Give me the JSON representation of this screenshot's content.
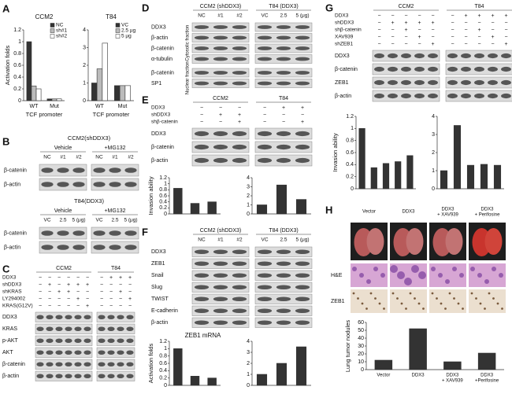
{
  "letters": [
    "A",
    "B",
    "C",
    "D",
    "E",
    "F",
    "G",
    "H"
  ],
  "chart_data": [
    {
      "type": "bar",
      "title": "CCM2",
      "ylabel": "Activation folds",
      "xlabel": "TCF promoter",
      "categories": [
        "WT",
        "Mut"
      ],
      "series": [
        {
          "name": "NC",
          "color": "#333333",
          "values": [
            1.0,
            0.03
          ]
        },
        {
          "name": "sh#1",
          "color": "#bbbbbb",
          "values": [
            0.25,
            0.03
          ]
        },
        {
          "name": "sh#2",
          "color": "#ffffff",
          "values": [
            0.2,
            0.03
          ]
        }
      ],
      "ylim": [
        0,
        1.2
      ],
      "yticks": [
        0,
        0.2,
        0.4,
        0.6,
        0.8,
        1,
        1.2
      ]
    },
    {
      "type": "bar",
      "title": "T84",
      "xlabel": "TCF promoter",
      "categories": [
        "WT",
        "Mut"
      ],
      "series": [
        {
          "name": "VC",
          "color": "#333333",
          "values": [
            1.0,
            0.85
          ]
        },
        {
          "name": "2.5 µg",
          "color": "#bbbbbb",
          "values": [
            1.8,
            0.85
          ]
        },
        {
          "name": "5 µg",
          "color": "#ffffff",
          "values": [
            3.25,
            0.85
          ]
        }
      ],
      "ylim": [
        0,
        4
      ],
      "yticks": [
        0,
        1,
        2,
        3,
        4
      ]
    },
    {
      "type": "bar",
      "ylabel": "Invasion ability",
      "values": [
        0.85,
        0.35,
        0.4
      ],
      "color": "#333333",
      "ylim": [
        0,
        1.2
      ],
      "yticks": [
        0,
        0.2,
        0.4,
        0.6,
        0.8,
        1,
        1.2
      ]
    },
    {
      "type": "bar",
      "values": [
        1.0,
        3.2,
        1.6
      ],
      "color": "#333333",
      "ylim": [
        0,
        4
      ],
      "yticks": [
        0,
        1,
        2,
        3,
        4
      ]
    },
    {
      "type": "bar",
      "title": "ZEB1 mRNA",
      "ylabel": "Activation folds",
      "values": [
        1.0,
        0.25,
        0.2
      ],
      "color": "#333333",
      "ylim": [
        0,
        1.2
      ],
      "yticks": [
        0,
        0.2,
        0.4,
        0.6,
        0.8,
        1,
        1.2
      ]
    },
    {
      "type": "bar",
      "values": [
        1.0,
        2.0,
        3.5
      ],
      "color": "#333333",
      "ylim": [
        0,
        4
      ],
      "yticks": [
        0,
        1,
        2,
        3,
        4
      ]
    },
    {
      "type": "bar",
      "ylabel": "Invasion ability",
      "values": [
        1.0,
        0.35,
        0.42,
        0.45,
        0.55
      ],
      "color": "#333333",
      "ylim": [
        0,
        1.2
      ],
      "yticks": [
        0,
        0.2,
        0.4,
        0.6,
        0.8,
        1,
        1.2
      ]
    },
    {
      "type": "bar",
      "values": [
        1.0,
        3.5,
        1.3,
        1.35,
        1.3
      ],
      "color": "#333333",
      "ylim": [
        0,
        4
      ],
      "yticks": [
        0,
        1,
        2,
        3,
        4
      ]
    },
    {
      "type": "bar",
      "ylabel": "Lung tumor nodules",
      "categories": [
        [
          "Vector"
        ],
        [
          "DDX3"
        ],
        [
          "DDX3",
          "+ XAV939"
        ],
        [
          "DDX3",
          "+Perifosine"
        ]
      ],
      "values": [
        12,
        52,
        10,
        21
      ],
      "color": "#333333",
      "ylim": [
        0,
        60
      ],
      "yticks": [
        0,
        10,
        20,
        30,
        40,
        50,
        60
      ]
    }
  ],
  "blots": [
    {
      "title": "CCM2(shDDX3)",
      "groups": [
        {
          "label": "Vehicle",
          "lanes": [
            "NC",
            "#1",
            "#2"
          ]
        },
        {
          "label": "+MG132",
          "lanes": [
            "NC",
            "#1",
            "#2"
          ]
        }
      ],
      "rows": [
        "β-catenin",
        "β-actin"
      ]
    },
    {
      "title": "T84(DDX3)",
      "groups": [
        {
          "label": "Vehicle",
          "lanes": [
            "VC",
            "2.5",
            "5 (μg)"
          ]
        },
        {
          "label": "+MG132",
          "lanes": [
            "VC",
            "2.5",
            "5 (μg)"
          ]
        }
      ],
      "rows": [
        "β-catenin",
        "β-actin"
      ]
    },
    {
      "treatments": [
        "DDX3",
        "shDDX3",
        "shKRAS",
        "LY294002",
        "KRAS(G12V)"
      ],
      "groups": [
        {
          "label": "CCM2",
          "signs": [
            [
              "−",
              "−",
              "−",
              "−",
              "−",
              "−"
            ],
            [
              "−",
              "+",
              "−",
              "+",
              "+",
              "+"
            ],
            [
              "−",
              "−",
              "+",
              "+",
              "−",
              "−"
            ],
            [
              "−",
              "−",
              "−",
              "−",
              "+",
              "−"
            ],
            [
              "−",
              "−",
              "−",
              "−",
              "−",
              "+"
            ]
          ]
        },
        {
          "label": "T84",
          "signs": [
            [
              "−",
              "+",
              "+",
              "+"
            ],
            [
              "−",
              "−",
              "−",
              "−"
            ],
            [
              "−",
              "−",
              "+",
              "−"
            ],
            [
              "−",
              "−",
              "−",
              "+"
            ],
            [
              "−",
              "−",
              "−",
              "−"
            ]
          ]
        }
      ],
      "rows": [
        "DDX3",
        "KRAS",
        "p-AKT",
        "AKT",
        "β-catenin",
        "β-actin"
      ]
    },
    {
      "groups": [
        {
          "label": "CCM2 (shDDX3)",
          "lanes": [
            "NC",
            "#1",
            "#2"
          ]
        },
        {
          "label": "T84 (DDX3)",
          "lanes": [
            "VC",
            "2.5",
            "5 (μg)"
          ]
        }
      ],
      "rows": [
        "DDX3",
        "β-actin",
        "β-catenin",
        "α-tubulin",
        "β-catenin",
        "SP1"
      ],
      "fractions": [
        "Cytosolic fraction",
        "Nuclear fraction"
      ]
    },
    {
      "treatments": [
        "DDX3",
        "shDDX3",
        "shβ-catenin"
      ],
      "groups": [
        {
          "label": "CCM2",
          "signs": [
            [
              "−",
              "−",
              "−"
            ],
            [
              "−",
              "+",
              "+"
            ],
            [
              "−",
              "−",
              "+"
            ]
          ]
        },
        {
          "label": "T84",
          "signs": [
            [
              "−",
              "+",
              "+"
            ],
            [
              "−",
              "−",
              "−"
            ],
            [
              "−",
              "−",
              "+"
            ]
          ]
        }
      ],
      "rows": [
        "DDX3",
        "β-catenin",
        "β-actin"
      ]
    },
    {
      "groups": [
        {
          "label": "CCM2 (shDDX3)",
          "lanes": [
            "NC",
            "#1",
            "#2"
          ]
        },
        {
          "label": "T84 (DDX3)",
          "lanes": [
            "VC",
            "2.5",
            "5 (μg)"
          ]
        }
      ],
      "rows": [
        "DDX3",
        "ZEB1",
        "Snail",
        "Slug",
        "TWIST",
        "E-cadherin",
        "β-actin"
      ]
    },
    {
      "treatments": [
        "DDX3",
        "shDDX3",
        "shβ-catenin",
        "XAV939",
        "shZEB1"
      ],
      "groups": [
        {
          "label": "CCM2",
          "signs": [
            [
              "−",
              "−",
              "−",
              "−",
              "−"
            ],
            [
              "−",
              "+",
              "+",
              "+",
              "+"
            ],
            [
              "−",
              "−",
              "+",
              "−",
              "−"
            ],
            [
              "−",
              "−",
              "−",
              "+",
              "−"
            ],
            [
              "−",
              "−",
              "−",
              "−",
              "+"
            ]
          ]
        },
        {
          "label": "T84",
          "signs": [
            [
              "−",
              "+",
              "+",
              "+",
              "+"
            ],
            [
              "−",
              "−",
              "−",
              "−",
              "−"
            ],
            [
              "−",
              "−",
              "+",
              "−",
              "−"
            ],
            [
              "−",
              "−",
              "−",
              "+",
              "−"
            ],
            [
              "−",
              "−",
              "−",
              "−",
              "+"
            ]
          ]
        }
      ],
      "rows": [
        "DDX3",
        "β-catenin",
        "ZEB1",
        "β-actin"
      ]
    }
  ],
  "histology": {
    "columns": [
      [
        "Vector"
      ],
      [
        "DDX3"
      ],
      [
        "DDX3",
        "+ XAV939"
      ],
      [
        "DDX3",
        "+ Perifosine"
      ]
    ],
    "rows": [
      "H&E",
      "ZEB1"
    ]
  }
}
